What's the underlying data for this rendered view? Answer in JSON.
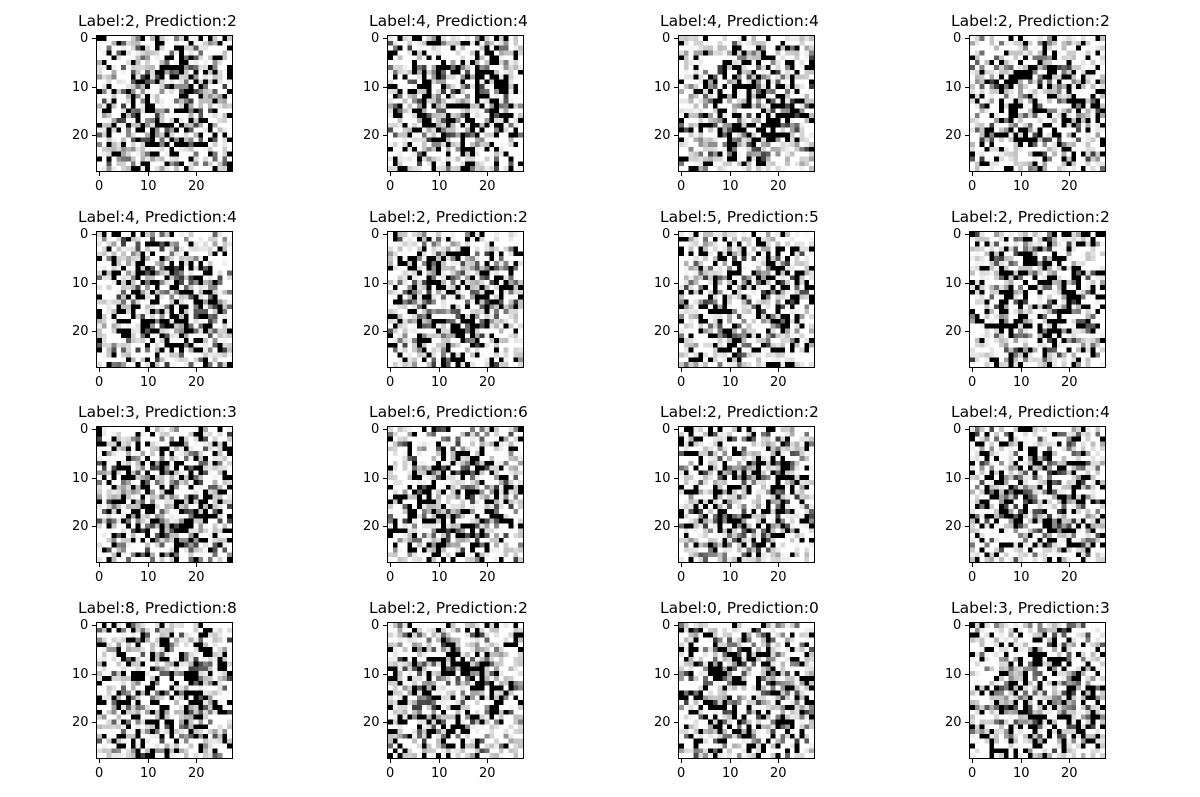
{
  "chart_data": {
    "type": "image-grid",
    "grid": {
      "rows": 4,
      "cols": 4
    },
    "image_size": [
      28,
      28
    ],
    "colormap": "gray_r",
    "axis_ticks": {
      "x": [
        0,
        10,
        20
      ],
      "y": [
        0,
        10,
        20
      ]
    },
    "panels": [
      {
        "title": "Label:2, Prediction:2",
        "label": 2,
        "prediction": 2
      },
      {
        "title": "Label:4, Prediction:4",
        "label": 4,
        "prediction": 4
      },
      {
        "title": "Label:4, Prediction:4",
        "label": 4,
        "prediction": 4
      },
      {
        "title": "Label:2, Prediction:2",
        "label": 2,
        "prediction": 2
      },
      {
        "title": "Label:4, Prediction:4",
        "label": 4,
        "prediction": 4
      },
      {
        "title": "Label:2, Prediction:2",
        "label": 2,
        "prediction": 2
      },
      {
        "title": "Label:5, Prediction:5",
        "label": 5,
        "prediction": 5
      },
      {
        "title": "Label:2, Prediction:2",
        "label": 2,
        "prediction": 2
      },
      {
        "title": "Label:3, Prediction:3",
        "label": 3,
        "prediction": 3
      },
      {
        "title": "Label:6, Prediction:6",
        "label": 6,
        "prediction": 6
      },
      {
        "title": "Label:2, Prediction:2",
        "label": 2,
        "prediction": 2
      },
      {
        "title": "Label:4, Prediction:4",
        "label": 4,
        "prediction": 4
      },
      {
        "title": "Label:8, Prediction:8",
        "label": 8,
        "prediction": 8
      },
      {
        "title": "Label:2, Prediction:2",
        "label": 2,
        "prediction": 2
      },
      {
        "title": "Label:0, Prediction:0",
        "label": 0,
        "prediction": 0
      },
      {
        "title": "Label:3, Prediction:3",
        "label": 3,
        "prediction": 3
      }
    ]
  }
}
